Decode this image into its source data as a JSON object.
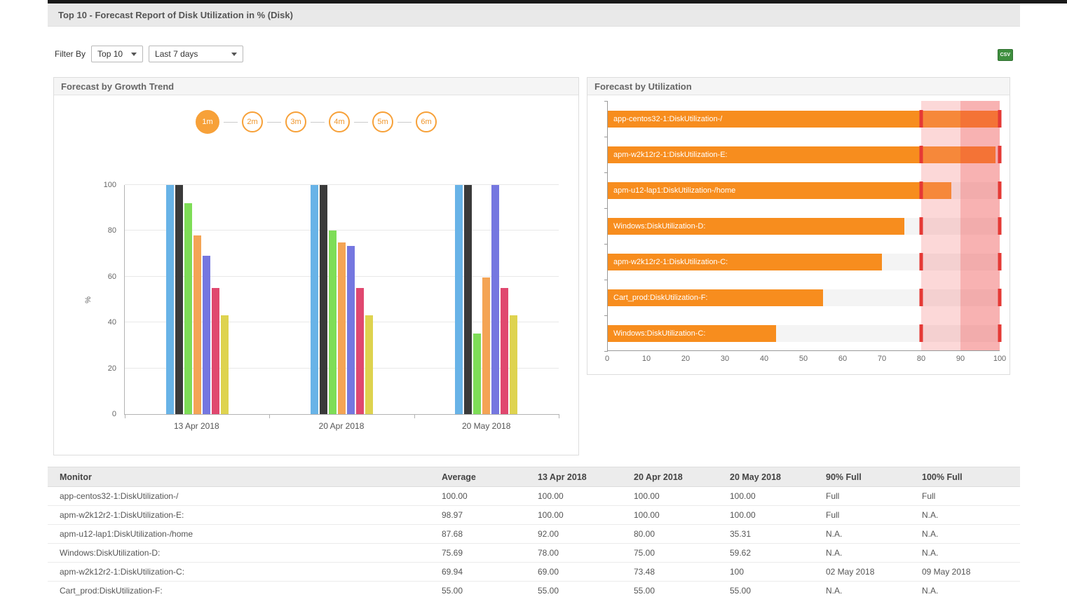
{
  "header": {
    "title": "Top 10 - Forecast Report of Disk Utilization in % (Disk)"
  },
  "filter": {
    "label": "Filter By",
    "top_n_value": "Top 10",
    "period_value": "Last 7 days",
    "export_icon_text": "CSV"
  },
  "growth_panel": {
    "months": [
      "1m",
      "2m",
      "3m",
      "4m",
      "5m",
      "6m"
    ],
    "active_month": "1m"
  },
  "chart_data": [
    {
      "type": "bar",
      "title": "Forecast by Growth Trend",
      "categories": [
        "13 Apr 2018",
        "20 Apr 2018",
        "20 May 2018"
      ],
      "series": [
        {
          "name": "app-centos32-1:DiskUtilization-/",
          "color": "#68b3e7",
          "values": [
            100,
            100,
            100
          ]
        },
        {
          "name": "apm-w2k12r2-1:DiskUtilization-E:",
          "color": "#3a3a3a",
          "values": [
            100,
            100,
            100
          ]
        },
        {
          "name": "apm-u12-lap1:DiskUtilization-/home",
          "color": "#7edd57",
          "values": [
            92,
            80,
            35.31
          ]
        },
        {
          "name": "Windows:DiskUtilization-D:",
          "color": "#f4a455",
          "values": [
            78,
            75,
            59.62
          ]
        },
        {
          "name": "apm-w2k12r2-1:DiskUtilization-C:",
          "color": "#7577e0",
          "values": [
            69,
            73.48,
            100
          ]
        },
        {
          "name": "Cart_prod:DiskUtilization-F:",
          "color": "#e0486f",
          "values": [
            55,
            55,
            55
          ]
        },
        {
          "name": "Windows:DiskUtilization-C:",
          "color": "#ded34f",
          "values": [
            43,
            43,
            43
          ]
        }
      ],
      "xlabel": "",
      "ylabel": "%",
      "ylim": [
        0,
        100
      ],
      "yticks": [
        0,
        20,
        40,
        60,
        80,
        100
      ],
      "grid": "horizontal",
      "legend": "none"
    },
    {
      "type": "bar-horizontal",
      "title": "Forecast by Utilization",
      "categories": [
        "app-centos32-1:DiskUtilization-/",
        "apm-w2k12r2-1:DiskUtilization-E:",
        "apm-u12-lap1:DiskUtilization-/home",
        "Windows:DiskUtilization-D:",
        "apm-w2k12r2-1:DiskUtilization-C:",
        "Cart_prod:DiskUtilization-F:",
        "Windows:DiskUtilization-C:"
      ],
      "values": [
        100,
        98.97,
        87.68,
        75.69,
        69.94,
        55,
        43
      ],
      "bar_color": "#f78d1e",
      "track_color": "#f4f4f4",
      "threshold_color": "#e53935",
      "xlim": [
        0,
        100
      ],
      "xticks": [
        0,
        10,
        20,
        30,
        40,
        50,
        60,
        70,
        80,
        90,
        100
      ],
      "zones": [
        {
          "from": 80,
          "to": 90,
          "level": "warning",
          "color": "rgba(244,125,125,0.30)"
        },
        {
          "from": 90,
          "to": 100,
          "level": "critical",
          "color": "rgba(240,85,85,0.45)"
        }
      ],
      "thresholds": [
        80,
        100
      ],
      "legend": "none"
    }
  ],
  "table": {
    "columns": [
      "Monitor",
      "Average",
      "13 Apr 2018",
      "20 Apr 2018",
      "20 May 2018",
      "90% Full",
      "100% Full"
    ],
    "rows": [
      [
        "app-centos32-1:DiskUtilization-/",
        "100.00",
        "100.00",
        "100.00",
        "100.00",
        "Full",
        "Full"
      ],
      [
        "apm-w2k12r2-1:DiskUtilization-E:",
        "98.97",
        "100.00",
        "100.00",
        "100.00",
        "Full",
        "N.A."
      ],
      [
        "apm-u12-lap1:DiskUtilization-/home",
        "87.68",
        "92.00",
        "80.00",
        "35.31",
        "N.A.",
        "N.A."
      ],
      [
        "Windows:DiskUtilization-D:",
        "75.69",
        "78.00",
        "75.00",
        "59.62",
        "N.A.",
        "N.A."
      ],
      [
        "apm-w2k12r2-1:DiskUtilization-C:",
        "69.94",
        "69.00",
        "73.48",
        "100",
        "02 May 2018",
        "09 May 2018"
      ],
      [
        "Cart_prod:DiskUtilization-F:",
        "55.00",
        "55.00",
        "55.00",
        "55.00",
        "N.A.",
        "N.A."
      ]
    ]
  }
}
